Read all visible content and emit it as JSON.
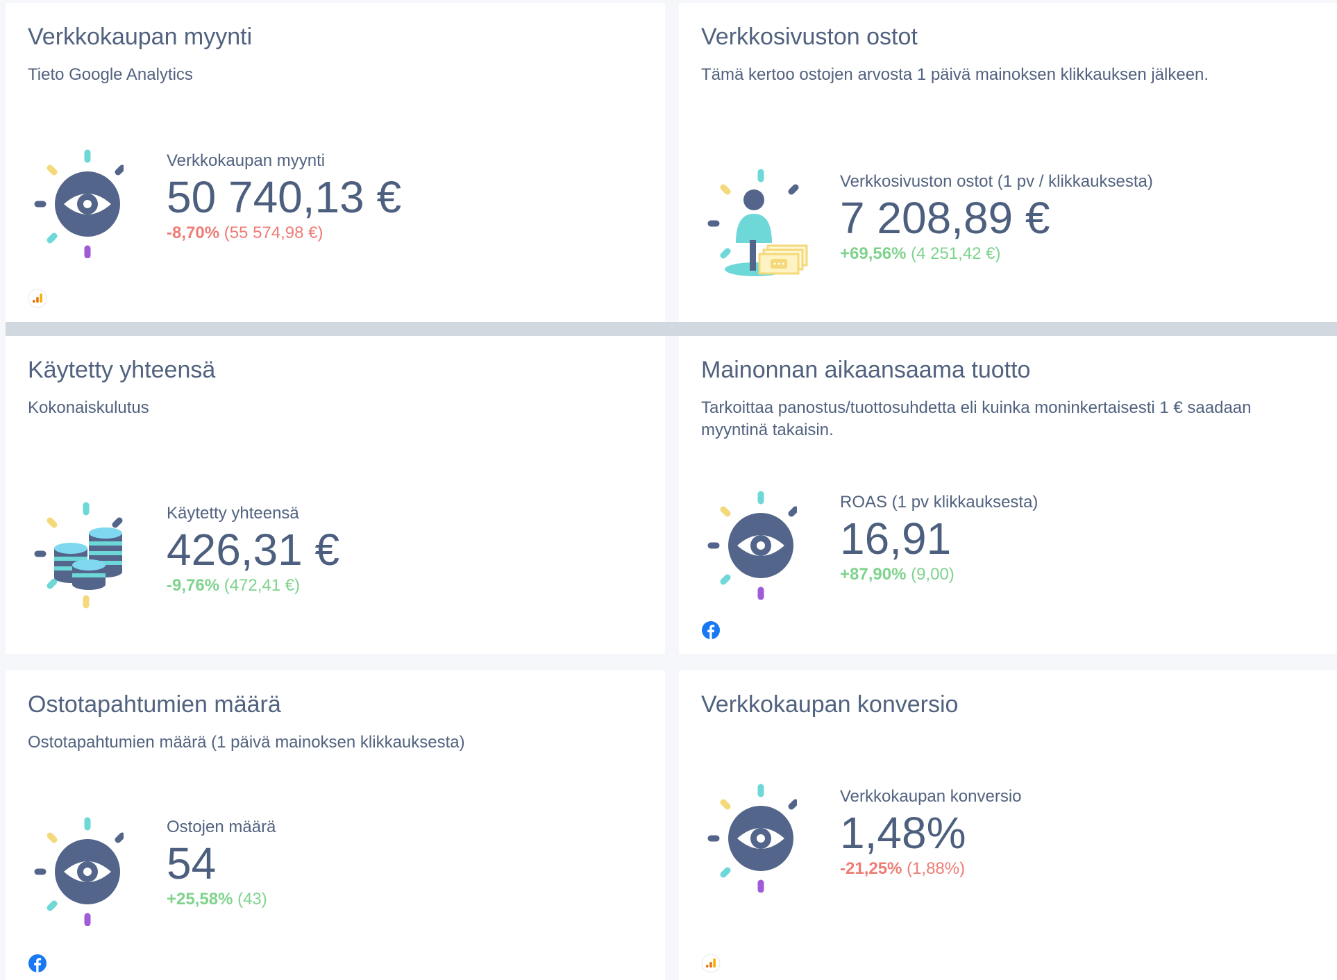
{
  "cards": [
    {
      "title": "Verkkokaupan myynti",
      "subtitle": "Tieto Google Analytics",
      "metric_label": "Verkkokaupan myynti",
      "value": "50 740,13 €",
      "change_pct": "-8,70%",
      "change_prev": "(55 574,98 €)",
      "trend": "negative",
      "icon": "eye-icon",
      "source": "google-analytics-icon"
    },
    {
      "title": "Verkkosivuston ostot",
      "subtitle": "Tämä kertoo ostojen arvosta 1 päivä mainoksen klikkauksen jälkeen.",
      "metric_label": "Verkkosivuston ostot (1 pv / klikkauksesta)",
      "value": "7 208,89 €",
      "change_pct": "+69,56%",
      "change_prev": "(4 251,42 €)",
      "trend": "positive",
      "icon": "person-money-icon",
      "source": ""
    },
    {
      "title": "Käytetty yhteensä",
      "subtitle": "Kokonaiskulutus",
      "metric_label": "Käytetty yhteensä",
      "value": "426,31 €",
      "change_pct": "-9,76%",
      "change_prev": "(472,41 €)",
      "trend": "positive",
      "icon": "coins-icon",
      "source": ""
    },
    {
      "title": "Mainonnan aikaansaama tuotto",
      "subtitle": "Tarkoittaa panostus/tuottosuhdetta eli kuinka moninkertaisesti 1 € saadaan myyntinä takaisin.",
      "metric_label": "ROAS (1 pv klikkauksesta)",
      "value": "16,91",
      "change_pct": "+87,90%",
      "change_prev": "(9,00)",
      "trend": "positive",
      "icon": "eye-icon",
      "source": "facebook-icon"
    },
    {
      "title": "Ostotapahtumien määrä",
      "subtitle": "Ostotapahtumien määrä (1 päivä mainoksen klikkauksesta)",
      "metric_label": "Ostojen määrä",
      "value": "54",
      "change_pct": "+25,58%",
      "change_prev": "(43)",
      "trend": "positive",
      "icon": "eye-icon",
      "source": "facebook-icon"
    },
    {
      "title": "Verkkokaupan konversio",
      "subtitle": "",
      "metric_label": "Verkkokaupan konversio",
      "value": "1,48%",
      "change_pct": "-21,25%",
      "change_prev": "(1,88%)",
      "trend": "negative",
      "icon": "eye-icon",
      "source": "google-analytics-icon"
    }
  ],
  "colors": {
    "text": "#4d5f7e",
    "negative": "#ee7c75",
    "positive": "#7fd38e",
    "ray_teal": "#6ed7d8",
    "ray_yellow": "#f4d97a",
    "ray_navy": "#53658a",
    "ray_purple": "#a05bd6",
    "facebook": "#1877f2",
    "ga_orange": "#f4a623"
  }
}
